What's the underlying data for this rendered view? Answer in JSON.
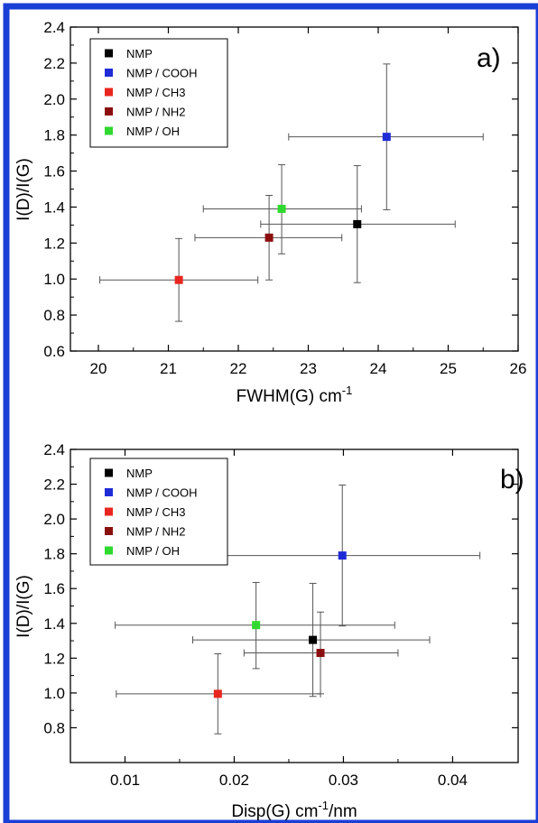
{
  "colors": {
    "frame": "#1a3fd6",
    "axis": "#000000",
    "errorbar": "#555555"
  },
  "chart_data": [
    {
      "type": "scatter",
      "panel_label": "a)",
      "xlabel": "FWHM(G) cm",
      "xlabel_sup": "-1",
      "ylabel": "I(D)/I(G)",
      "xlim": [
        19.6,
        26
      ],
      "ylim": [
        0.6,
        2.4
      ],
      "xticks": [
        20,
        21,
        22,
        23,
        24,
        25,
        26
      ],
      "xtick_labels": [
        "20",
        "21",
        "22",
        "23",
        "24",
        "25",
        "26"
      ],
      "yticks": [
        0.6,
        0.8,
        1.0,
        1.2,
        1.4,
        1.6,
        1.8,
        2.0,
        2.2,
        2.4
      ],
      "ytick_labels": [
        "0.6",
        "0.8",
        "1.0",
        "1.2",
        "1.4",
        "1.6",
        "1.8",
        "2.0",
        "2.2",
        "2.4"
      ],
      "legend_position": "top-left",
      "grid": false,
      "series": [
        {
          "name": "NMP",
          "color": "#000000",
          "x": 23.7,
          "y": 1.305,
          "xerr": [
            22.32,
            25.1
          ],
          "yerr": [
            0.98,
            1.63
          ]
        },
        {
          "name": "NMP / COOH",
          "color": "#1f2bd6",
          "x": 24.12,
          "y": 1.79,
          "xerr": [
            22.72,
            25.5
          ],
          "yerr": [
            1.385,
            2.195
          ]
        },
        {
          "name": "NMP / CH3",
          "color": "#e8261f",
          "x": 21.15,
          "y": 0.995,
          "xerr": [
            20.02,
            22.28
          ],
          "yerr": [
            0.765,
            1.225
          ]
        },
        {
          "name": "NMP / NH2",
          "color": "#8b0f0f",
          "x": 22.44,
          "y": 1.23,
          "xerr": [
            21.38,
            23.48
          ],
          "yerr": [
            0.995,
            1.465
          ]
        },
        {
          "name": "NMP / OH",
          "color": "#2fd92f",
          "x": 22.62,
          "y": 1.39,
          "xerr": [
            21.5,
            23.76
          ],
          "yerr": [
            1.14,
            1.635
          ]
        }
      ]
    },
    {
      "type": "scatter",
      "panel_label": "b)",
      "xlabel": "Disp(G) cm",
      "xlabel_sup": "-1",
      "xlabel_tail": "/nm",
      "ylabel": "I(D)/I(G)",
      "xlim": [
        0.005,
        0.046
      ],
      "ylim": [
        0.6,
        2.4
      ],
      "xticks": [
        0.01,
        0.02,
        0.03,
        0.04
      ],
      "xtick_labels": [
        "0.01",
        "0.02",
        "0.03",
        "0.04"
      ],
      "yticks": [
        0.8,
        1.0,
        1.2,
        1.4,
        1.6,
        1.8,
        2.0,
        2.2,
        2.4
      ],
      "ytick_labels": [
        "0.8",
        "1.0",
        "1.2",
        "1.4",
        "1.6",
        "1.8",
        "2.0",
        "2.2",
        "2.4"
      ],
      "legend_position": "top-left",
      "grid": false,
      "series": [
        {
          "name": "NMP",
          "color": "#000000",
          "x": 0.0272,
          "y": 1.305,
          "xerr": [
            0.0162,
            0.0379
          ],
          "yerr": [
            0.98,
            1.63
          ]
        },
        {
          "name": "NMP / COOH",
          "color": "#1f2bd6",
          "x": 0.0299,
          "y": 1.79,
          "xerr": [
            0.0173,
            0.0425
          ],
          "yerr": [
            1.385,
            2.195
          ]
        },
        {
          "name": "NMP / CH3",
          "color": "#e8261f",
          "x": 0.0185,
          "y": 0.995,
          "xerr": [
            0.0092,
            0.0279
          ],
          "yerr": [
            0.765,
            1.225
          ]
        },
        {
          "name": "NMP / NH2",
          "color": "#8b0f0f",
          "x": 0.0279,
          "y": 1.23,
          "xerr": [
            0.0209,
            0.035
          ],
          "yerr": [
            0.995,
            1.465
          ]
        },
        {
          "name": "NMP / OH",
          "color": "#2fd92f",
          "x": 0.022,
          "y": 1.39,
          "xerr": [
            0.0091,
            0.0347
          ],
          "yerr": [
            1.14,
            1.635
          ]
        }
      ]
    }
  ]
}
